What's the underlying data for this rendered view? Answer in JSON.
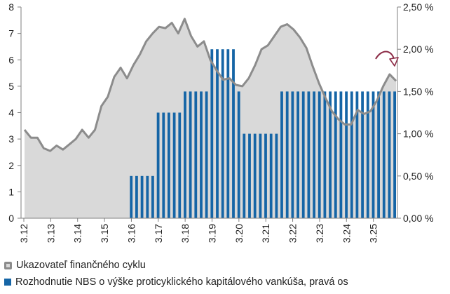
{
  "chart_data": {
    "type": "bar+area-line",
    "title": "",
    "xlabel": "",
    "ylabel": "",
    "left_axis": {
      "ticks": [
        "0",
        "1",
        "2",
        "3",
        "4",
        "5",
        "6",
        "7",
        "8"
      ],
      "ylim": [
        0,
        8
      ]
    },
    "right_axis": {
      "ticks": [
        "0,00 %",
        "0,50 %",
        "1,00 %",
        "1,50 %",
        "2,00 %",
        "2,50 %"
      ],
      "ylim": [
        0,
        2.5
      ]
    },
    "x_tick_labels": [
      "3.12",
      "3.13",
      "3.14",
      "3.15",
      "3.16",
      "3.17",
      "3.18",
      "3.19",
      "3.20",
      "3.21",
      "3.22",
      "3.23",
      "3.24",
      "3.25"
    ],
    "grid": false,
    "legend_position": "bottom",
    "series": [
      {
        "name": "Ukazovateľ finančného cyklu",
        "kind": "line-area",
        "axis": "left",
        "color": "#8c8c8c",
        "fill": "#d9d9d9",
        "values": [
          3.35,
          3.05,
          3.05,
          2.65,
          2.55,
          2.75,
          2.6,
          2.8,
          3.0,
          3.35,
          3.05,
          3.35,
          4.25,
          4.6,
          5.35,
          5.7,
          5.3,
          5.8,
          6.2,
          6.7,
          7.0,
          7.25,
          7.2,
          7.4,
          7.0,
          7.55,
          6.9,
          6.5,
          6.7,
          6.0,
          5.6,
          5.25,
          5.3,
          5.05,
          5.0,
          5.3,
          5.8,
          6.4,
          6.55,
          6.9,
          7.25,
          7.35,
          7.15,
          6.85,
          6.45,
          5.75,
          5.1,
          4.55,
          4.05,
          3.75,
          3.55,
          3.55,
          4.1,
          3.95,
          4.05,
          4.45,
          5.0,
          5.45,
          5.2
        ]
      },
      {
        "name": "Rozhodnutie NBS o výške proticyklického kapitálového vankúša, pravá os",
        "kind": "bar",
        "axis": "right",
        "color": "#1565a6",
        "values": [
          0,
          0,
          0,
          0,
          0,
          0,
          0,
          0,
          0,
          0,
          0,
          0,
          0,
          0,
          0,
          0,
          0,
          0,
          0,
          0,
          0.5,
          0.5,
          0.5,
          0.5,
          0.5,
          1.25,
          1.25,
          1.25,
          1.25,
          1.25,
          1.5,
          1.5,
          1.5,
          1.5,
          1.5,
          2.0,
          2.0,
          2.0,
          2.0,
          2.0,
          1.5,
          1.0,
          1.0,
          1.0,
          1.0,
          1.0,
          1.0,
          1.0,
          1.5,
          1.5,
          1.5,
          1.5,
          1.5,
          1.5,
          1.5,
          1.5,
          1.5,
          1.5,
          1.5,
          1.5,
          1.5,
          1.5,
          1.5,
          1.5,
          1.5,
          1.5,
          1.5,
          1.5,
          1.5,
          1.5
        ]
      }
    ],
    "annotation": "curved-arrow-down"
  },
  "legend": {
    "line_label": "Ukazovateľ finančného cyklu",
    "bar_label": "Rozhodnutie NBS o výške proticyklického kapitálového vankúša, pravá os"
  }
}
